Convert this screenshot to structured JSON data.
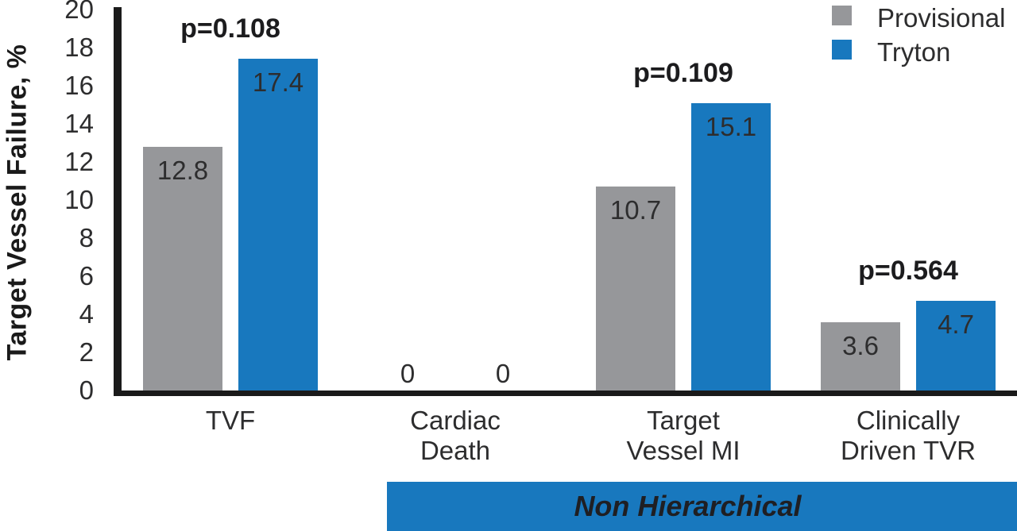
{
  "chart_data": {
    "type": "bar",
    "title": "",
    "ylabel": "Target Vessel Failure, %",
    "xlabel": "",
    "ylim": [
      0,
      20
    ],
    "ytick_step": 2,
    "yticks": [
      0,
      2,
      4,
      6,
      8,
      10,
      12,
      14,
      16,
      18,
      20
    ],
    "grid": false,
    "legend_position": "top-right",
    "categories": [
      "TVF",
      "Cardiac Death",
      "Target Vessel MI",
      "Clinically Driven TVR"
    ],
    "category_label_lines": [
      [
        "TVF"
      ],
      [
        "Cardiac",
        "Death"
      ],
      [
        "Target",
        "Vessel MI"
      ],
      [
        "Clinically",
        "Driven TVR"
      ]
    ],
    "series": [
      {
        "name": "Provisional",
        "color": "#96979a",
        "values": [
          12.8,
          0,
          10.7,
          3.6
        ],
        "value_labels": [
          "12.8",
          "0",
          "10.7",
          "3.6"
        ]
      },
      {
        "name": "Tryton",
        "color": "#1878be",
        "values": [
          17.4,
          0,
          15.1,
          4.7
        ],
        "value_labels": [
          "17.4",
          "0",
          "15.1",
          "4.7"
        ]
      }
    ],
    "p_values": [
      {
        "category_index": 0,
        "label": "p=0.108"
      },
      {
        "category_index": 2,
        "label": "p=0.109"
      },
      {
        "category_index": 3,
        "label": "p=0.564"
      }
    ],
    "footer_banner": "Non Hierarchical"
  },
  "colors": {
    "provisional": "#96979a",
    "tryton": "#1878be",
    "banner_background": "#1878be",
    "axis_line": "#1a1a1a",
    "text": "#2d2d2e"
  }
}
